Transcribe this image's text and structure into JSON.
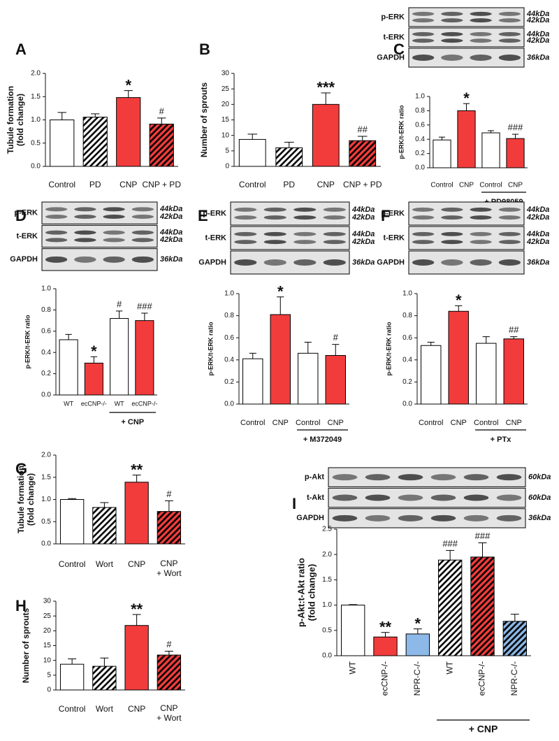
{
  "chart_data": [
    {
      "type": "bar",
      "title": "A",
      "y_label": [
        "Tubule formation",
        "(fold change)"
      ],
      "categories": [
        "Control",
        "PD",
        "CNP",
        "CNP + PD"
      ],
      "values": [
        1.0,
        1.06,
        1.48,
        0.91
      ],
      "errors": [
        0.16,
        0.07,
        0.15,
        0.13
      ],
      "colors": [
        "#ffffff",
        "#ffffff",
        "#f23c3c",
        "#f23c3c"
      ],
      "hatched": [
        false,
        true,
        false,
        true
      ],
      "annotations": [
        null,
        null,
        "*",
        "#"
      ],
      "ylim": [
        0,
        2
      ],
      "yticks": [
        {
          "value": 0,
          "label": "0.0"
        },
        0.5,
        {
          "value": 1,
          "label": "1.0"
        },
        1.5,
        {
          "value": 2,
          "label": "2.0"
        }
      ]
    },
    {
      "type": "bar",
      "title": "B",
      "y_label": "Number of sprouts",
      "categories": [
        "Control",
        "PD",
        "CNP",
        "CNP + PD"
      ],
      "values": [
        8.7,
        6.0,
        20.0,
        8.3
      ],
      "errors": [
        1.7,
        1.8,
        3.7,
        1.4
      ],
      "colors": [
        "#ffffff",
        "#ffffff",
        "#f23c3c",
        "#f23c3c"
      ],
      "hatched": [
        false,
        true,
        false,
        true
      ],
      "annotations": [
        null,
        null,
        "***",
        "##"
      ],
      "ylim": [
        0,
        30
      ],
      "yticks": [
        0,
        5,
        10,
        15,
        20,
        25,
        30
      ]
    },
    {
      "type": "bar",
      "title": "C",
      "y_label": "p-ERK/t-ERK ratio",
      "blot": {
        "rows": [
          "p-ERK",
          "t-ERK",
          "GAPDH"
        ],
        "sizes": [
          [
            "44kDa",
            "42kDa"
          ],
          [
            "44kDa",
            "42kDa"
          ],
          [
            "36kDa"
          ]
        ]
      },
      "categories": [
        "Control",
        "CNP",
        "Control",
        "CNP"
      ],
      "group_label": "+ PD98059",
      "values": [
        0.39,
        0.8,
        0.49,
        0.41
      ],
      "errors": [
        0.04,
        0.1,
        0.03,
        0.06
      ],
      "colors": [
        "#ffffff",
        "#f23c3c",
        "#ffffff",
        "#f23c3c"
      ],
      "hatched": [
        false,
        false,
        false,
        false
      ],
      "annotations": [
        null,
        "*",
        null,
        "###"
      ],
      "ylim": [
        0,
        1
      ],
      "yticks": [
        {
          "value": 0,
          "label": "0.0"
        },
        0.2,
        0.4,
        0.6,
        0.8,
        {
          "value": 1,
          "label": "1.0"
        }
      ]
    },
    {
      "type": "bar",
      "title": "D",
      "y_label": "p-ERK/t-ERK ratio",
      "blot": {
        "rows": [
          "p-ERK",
          "t-ERK",
          "GAPDH"
        ],
        "sizes": [
          [
            "44kDa",
            "42kDa"
          ],
          [
            "44kDa",
            "42kDa"
          ],
          [
            "36kDa"
          ]
        ]
      },
      "categories": [
        "WT",
        "ecCNP-/-",
        "WT",
        "ecCNP-/-"
      ],
      "group_label": "+ CNP",
      "values": [
        0.52,
        0.3,
        0.72,
        0.7
      ],
      "errors": [
        0.05,
        0.06,
        0.07,
        0.07
      ],
      "colors": [
        "#ffffff",
        "#f23c3c",
        "#ffffff",
        "#f23c3c"
      ],
      "hatched": [
        false,
        false,
        false,
        false
      ],
      "annotations": [
        null,
        "*",
        "#",
        "###"
      ],
      "ylim": [
        0,
        1
      ],
      "yticks": [
        {
          "value": 0,
          "label": "0.0"
        },
        0.2,
        0.4,
        0.6,
        0.8,
        {
          "value": 1,
          "label": "1.0"
        }
      ]
    },
    {
      "type": "bar",
      "title": "E",
      "y_label": "p-ERK/t-ERK ratio",
      "blot": {
        "rows": [
          "p-ERK",
          "t-ERK",
          "GAPDH"
        ],
        "sizes": [
          [
            "44kDa",
            "42kDa"
          ],
          [
            "44kDa",
            "42kDa"
          ],
          [
            "36kDa"
          ]
        ]
      },
      "categories": [
        "Control",
        "CNP",
        "Control",
        "CNP"
      ],
      "group_label": "+ M372049",
      "values": [
        0.41,
        0.81,
        0.46,
        0.44
      ],
      "errors": [
        0.05,
        0.16,
        0.1,
        0.1
      ],
      "colors": [
        "#ffffff",
        "#f23c3c",
        "#ffffff",
        "#f23c3c"
      ],
      "hatched": [
        false,
        false,
        false,
        false
      ],
      "annotations": [
        null,
        "*",
        null,
        "#"
      ],
      "ylim": [
        0,
        1
      ],
      "yticks": [
        {
          "value": 0,
          "label": "0.0"
        },
        0.2,
        0.4,
        0.6,
        0.8,
        {
          "value": 1,
          "label": "1.0"
        }
      ]
    },
    {
      "type": "bar",
      "title": "F",
      "y_label": "p-ERK/t-ERK ratio",
      "blot": {
        "rows": [
          "p-ERK",
          "t-ERK",
          "GAPDH"
        ],
        "sizes": [
          [
            "44kDa",
            "42kDa"
          ],
          [
            "44kDa",
            "42kDa"
          ],
          [
            "36kDa"
          ]
        ]
      },
      "categories": [
        "Control",
        "CNP",
        "Control",
        "CNP"
      ],
      "group_label": "+ PTx",
      "values": [
        0.53,
        0.84,
        0.55,
        0.59
      ],
      "errors": [
        0.03,
        0.05,
        0.06,
        0.02
      ],
      "colors": [
        "#ffffff",
        "#f23c3c",
        "#ffffff",
        "#f23c3c"
      ],
      "hatched": [
        false,
        false,
        false,
        false
      ],
      "annotations": [
        null,
        "*",
        null,
        "##"
      ],
      "ylim": [
        0,
        1
      ],
      "yticks": [
        {
          "value": 0,
          "label": "0.0"
        },
        0.2,
        0.4,
        0.6,
        0.8,
        {
          "value": 1,
          "label": "1.0"
        }
      ]
    },
    {
      "type": "bar",
      "title": "G",
      "y_label": [
        "Tubule formation",
        "(fold change)"
      ],
      "categories": [
        "Control",
        "Wort",
        "CNP",
        [
          "CNP",
          "+ Wort"
        ]
      ],
      "values": [
        1.0,
        0.82,
        1.39,
        0.73
      ],
      "errors": [
        0.02,
        0.11,
        0.16,
        0.24
      ],
      "colors": [
        "#ffffff",
        "#ffffff",
        "#f23c3c",
        "#f23c3c"
      ],
      "hatched": [
        false,
        true,
        false,
        true
      ],
      "annotations": [
        null,
        null,
        "**",
        "#"
      ],
      "ylim": [
        0,
        2
      ],
      "yticks": [
        {
          "value": 0,
          "label": "0.0"
        },
        0.5,
        {
          "value": 1,
          "label": "1.0"
        },
        1.5,
        {
          "value": 2,
          "label": "2.0"
        }
      ]
    },
    {
      "type": "bar",
      "title": "H",
      "y_label": "Number of sprouts",
      "categories": [
        "Control",
        "Wort",
        "CNP",
        [
          "CNP",
          "+ Wort"
        ]
      ],
      "values": [
        8.7,
        8.0,
        21.8,
        11.8
      ],
      "errors": [
        1.8,
        2.8,
        3.7,
        1.3
      ],
      "colors": [
        "#ffffff",
        "#ffffff",
        "#f23c3c",
        "#f23c3c"
      ],
      "hatched": [
        false,
        true,
        false,
        true
      ],
      "annotations": [
        null,
        null,
        "**",
        "#"
      ],
      "ylim": [
        0,
        30
      ],
      "yticks": [
        0,
        5,
        10,
        15,
        20,
        25,
        30
      ]
    },
    {
      "type": "bar",
      "title": "I",
      "y_label": [
        "p-Akt:t-Akt ratio",
        "(fold change)"
      ],
      "blot": {
        "rows": [
          "p-Akt",
          "t-Akt",
          "GAPDH"
        ],
        "sizes": [
          [
            "60kDa"
          ],
          [
            "60kDa"
          ],
          [
            "36kDa"
          ]
        ]
      },
      "categories": [
        "WT",
        "ecCNP-/-",
        "NPR-C-/-",
        "WT",
        "ecCNP-/-",
        "NPR-C-/-"
      ],
      "group_label": "+ CNP",
      "values": [
        1.0,
        0.37,
        0.43,
        1.89,
        1.95,
        0.68
      ],
      "errors": [
        0.01,
        0.09,
        0.1,
        0.19,
        0.28,
        0.14
      ],
      "colors": [
        "#ffffff",
        "#f23c3c",
        "#8db9e8",
        "#ffffff",
        "#f23c3c",
        "#8db9e8"
      ],
      "hatched": [
        false,
        false,
        false,
        true,
        true,
        true
      ],
      "annotations": [
        null,
        "**",
        "*",
        "###",
        "###",
        null
      ],
      "ylim": [
        0,
        2.5
      ],
      "yticks": [
        {
          "value": 0,
          "label": "0.0"
        },
        0.5,
        {
          "value": 1,
          "label": "1.0"
        },
        1.5,
        {
          "value": 2,
          "label": "2.0"
        },
        2.5
      ]
    }
  ]
}
